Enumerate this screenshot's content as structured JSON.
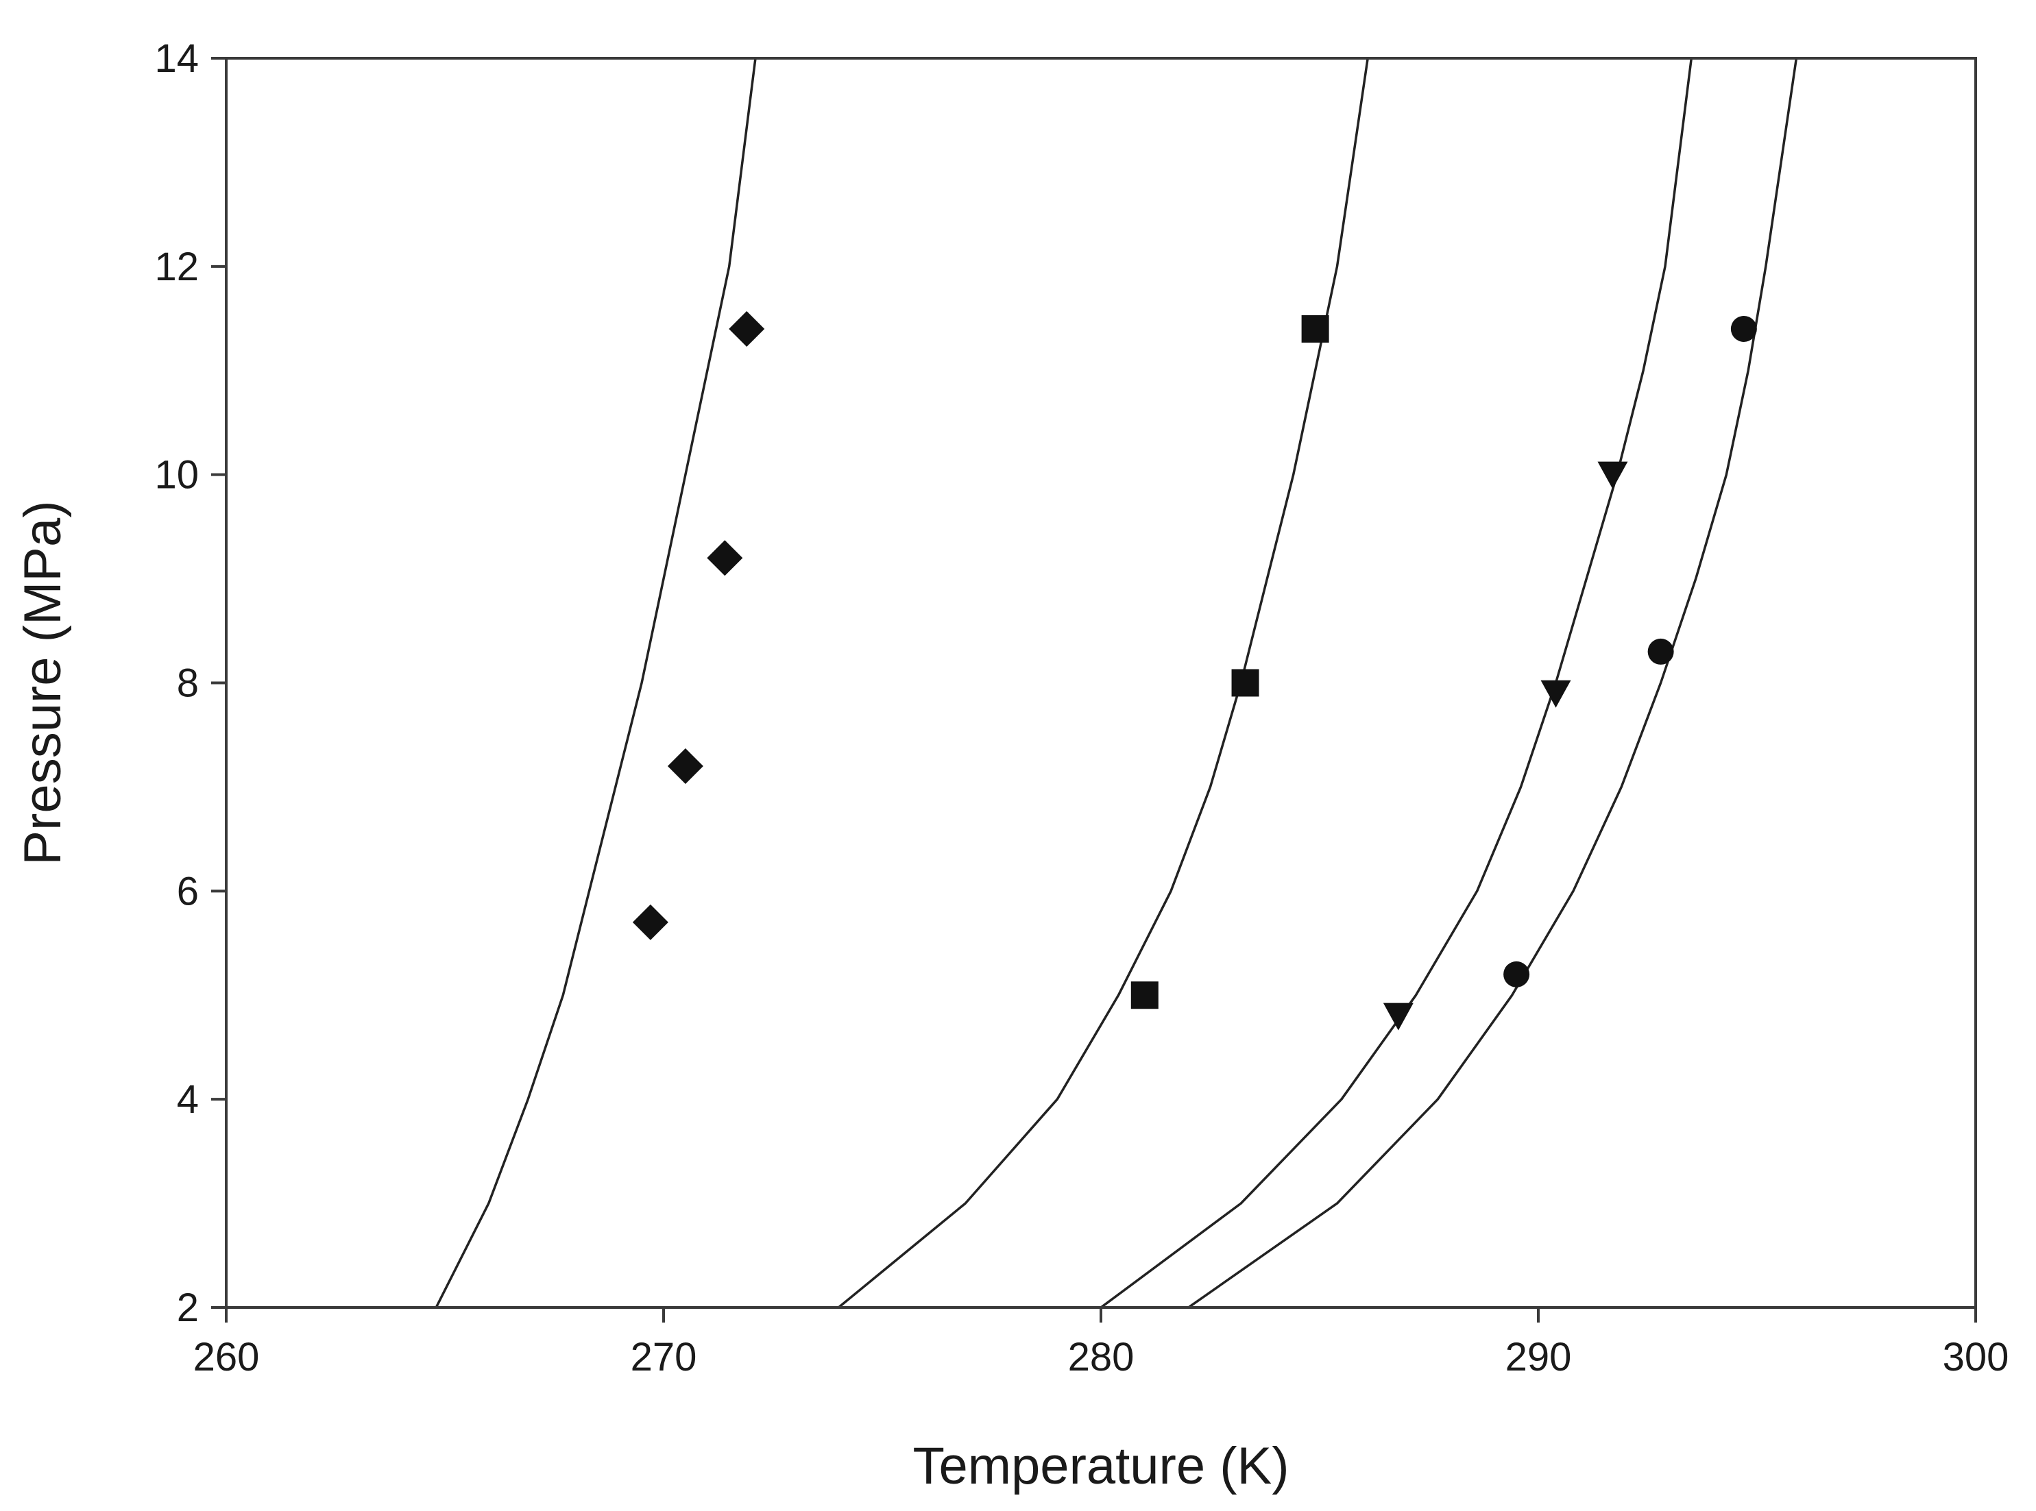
{
  "chart_data": {
    "type": "scatter",
    "xlabel": "Temperature (K)",
    "ylabel": "Pressure (MPa)",
    "xlim": [
      260,
      300
    ],
    "ylim": [
      2,
      14
    ],
    "xticks": [
      260,
      270,
      280,
      290,
      300
    ],
    "yticks": [
      2,
      4,
      6,
      8,
      10,
      12,
      14
    ],
    "xtick_labels": [
      "260",
      "270",
      "280",
      "290",
      "300"
    ],
    "ytick_labels": [
      "2",
      "4",
      "6",
      "8",
      "10",
      "12",
      "14"
    ],
    "grid": false,
    "legend": "none",
    "curve_color": "#222222",
    "marker_color": "#111111",
    "curves": [
      {
        "x": [
          264.8,
          266.0,
          266.9,
          267.7,
          268.3,
          268.9,
          269.5,
          270.0,
          270.5,
          271.0,
          271.5,
          272.1
        ],
        "y": [
          2,
          3,
          4,
          5,
          6,
          7,
          8,
          9,
          10,
          11,
          12,
          14
        ]
      },
      {
        "x": [
          274.0,
          276.9,
          279.0,
          280.4,
          281.6,
          282.5,
          283.2,
          283.8,
          284.4,
          284.9,
          285.4,
          286.1
        ],
        "y": [
          2,
          3,
          4,
          5,
          6,
          7,
          8,
          9,
          10,
          11,
          12,
          14
        ]
      },
      {
        "x": [
          280.0,
          283.2,
          285.5,
          287.2,
          288.6,
          289.6,
          290.4,
          291.1,
          291.8,
          292.4,
          292.9,
          293.5
        ],
        "y": [
          2,
          3,
          4,
          5,
          6,
          7,
          8,
          9,
          10,
          11,
          12,
          14
        ]
      },
      {
        "x": [
          282.0,
          285.4,
          287.7,
          289.4,
          290.8,
          291.9,
          292.8,
          293.6,
          294.3,
          294.8,
          295.2,
          295.9
        ],
        "y": [
          2,
          3,
          4,
          5,
          6,
          7,
          8,
          9,
          10,
          11,
          12,
          14
        ]
      }
    ],
    "series": [
      {
        "marker": "diamond",
        "x": [
          269.7,
          270.5,
          271.4,
          271.9
        ],
        "y": [
          5.7,
          7.2,
          9.2,
          11.4
        ]
      },
      {
        "marker": "square",
        "x": [
          281.0,
          283.3,
          284.9
        ],
        "y": [
          5.0,
          8.0,
          11.4
        ]
      },
      {
        "marker": "triangle-down",
        "x": [
          286.8,
          290.4,
          291.7
        ],
        "y": [
          4.8,
          7.9,
          10.0
        ]
      },
      {
        "marker": "circle",
        "x": [
          289.5,
          292.8,
          294.7
        ],
        "y": [
          5.2,
          8.3,
          11.4
        ]
      }
    ]
  }
}
